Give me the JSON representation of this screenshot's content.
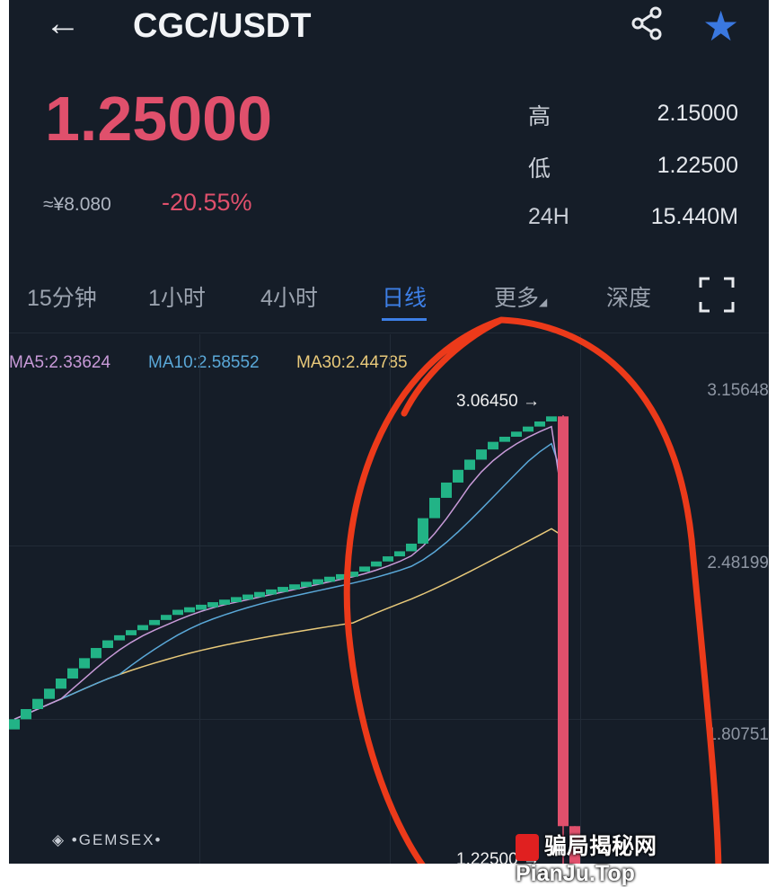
{
  "header": {
    "title": "CGC/USDT",
    "back_icon": "arrow-left",
    "share_icon": "share",
    "favorite_icon": "star",
    "favorite_color": "#3a78e0"
  },
  "ticker": {
    "last_price": "1.25000",
    "cny_price": "≈¥8.080",
    "change_percent": "-20.55%",
    "down_color": "#e0506c",
    "stats": [
      {
        "label": "高",
        "value": "2.15000"
      },
      {
        "label": "低",
        "value": "1.22500"
      },
      {
        "label": "24H",
        "value": "15.440M"
      }
    ]
  },
  "tabs": [
    {
      "label": "15分钟"
    },
    {
      "label": "1小时"
    },
    {
      "label": "4小时"
    },
    {
      "label": "日线",
      "active": true
    },
    {
      "label": "更多"
    },
    {
      "label": "深度"
    }
  ],
  "fullscreen_icon": "fullscreen",
  "indicators": {
    "ma5": "MA5:2.33624",
    "ma10": "MA10:2.58552",
    "ma30": "MA30:2.44785",
    "ma5_color": "#c89ad8",
    "ma10_color": "#5aa8d8",
    "ma30_color": "#e8c97a"
  },
  "chart_data": {
    "type": "candlestick",
    "y_ticks": [
      "3.15648",
      "2.48199",
      "1.80751"
    ],
    "ylim": [
      1.2,
      3.2
    ],
    "max_label": "3.06450",
    "min_label": "1.22500",
    "up_color": "#22b386",
    "down_color": "#e0506c",
    "candles": [
      {
        "o": 1.83,
        "c": 1.87
      },
      {
        "o": 1.87,
        "c": 1.91
      },
      {
        "o": 1.91,
        "c": 1.95
      },
      {
        "o": 1.95,
        "c": 1.99
      },
      {
        "o": 1.99,
        "c": 2.03
      },
      {
        "o": 2.03,
        "c": 2.07
      },
      {
        "o": 2.07,
        "c": 2.11
      },
      {
        "o": 2.11,
        "c": 2.15
      },
      {
        "o": 2.15,
        "c": 2.18
      },
      {
        "o": 2.18,
        "c": 2.2
      },
      {
        "o": 2.2,
        "c": 2.22
      },
      {
        "o": 2.22,
        "c": 2.24
      },
      {
        "o": 2.24,
        "c": 2.26
      },
      {
        "o": 2.26,
        "c": 2.28
      },
      {
        "o": 2.28,
        "c": 2.3
      },
      {
        "o": 2.29,
        "c": 2.31
      },
      {
        "o": 2.3,
        "c": 2.32
      },
      {
        "o": 2.31,
        "c": 2.33
      },
      {
        "o": 2.32,
        "c": 2.34
      },
      {
        "o": 2.33,
        "c": 2.35
      },
      {
        "o": 2.34,
        "c": 2.36
      },
      {
        "o": 2.35,
        "c": 2.37
      },
      {
        "o": 2.36,
        "c": 2.38
      },
      {
        "o": 2.37,
        "c": 2.39
      },
      {
        "o": 2.38,
        "c": 2.4
      },
      {
        "o": 2.39,
        "c": 2.41
      },
      {
        "o": 2.4,
        "c": 2.42
      },
      {
        "o": 2.41,
        "c": 2.43
      },
      {
        "o": 2.42,
        "c": 2.44
      },
      {
        "o": 2.43,
        "c": 2.45
      },
      {
        "o": 2.45,
        "c": 2.47
      },
      {
        "o": 2.47,
        "c": 2.49
      },
      {
        "o": 2.49,
        "c": 2.51
      },
      {
        "o": 2.51,
        "c": 2.53
      },
      {
        "o": 2.53,
        "c": 2.56
      },
      {
        "o": 2.56,
        "c": 2.66
      },
      {
        "o": 2.66,
        "c": 2.74
      },
      {
        "o": 2.74,
        "c": 2.8
      },
      {
        "o": 2.8,
        "c": 2.85
      },
      {
        "o": 2.85,
        "c": 2.89
      },
      {
        "o": 2.89,
        "c": 2.93
      },
      {
        "o": 2.93,
        "c": 2.96
      },
      {
        "o": 2.96,
        "c": 2.98
      },
      {
        "o": 2.98,
        "c": 3.0
      },
      {
        "o": 3.0,
        "c": 3.02
      },
      {
        "o": 3.02,
        "c": 3.04
      },
      {
        "o": 3.04,
        "c": 3.06
      },
      {
        "o": 3.06,
        "c": 1.45,
        "h": 3.0645,
        "l": 1.3
      },
      {
        "o": 1.45,
        "c": 1.25,
        "h": 1.45,
        "l": 1.225
      }
    ]
  },
  "brand_logo": "GEMSEX",
  "watermark": {
    "text": "骗局揭秘网 PianJu.Top"
  }
}
